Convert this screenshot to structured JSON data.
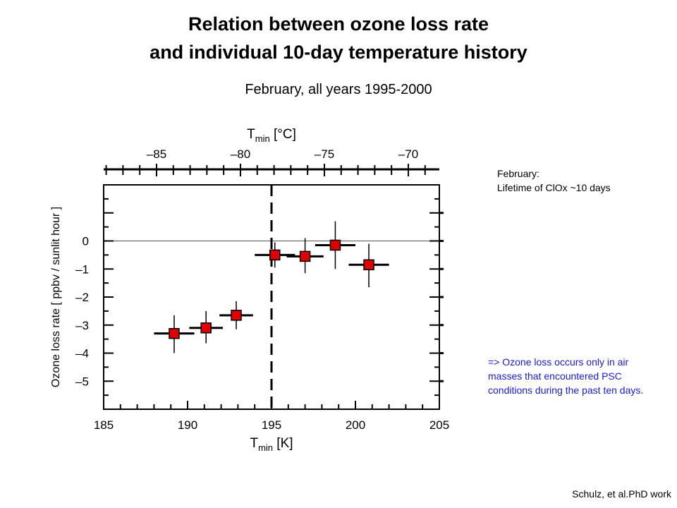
{
  "title": {
    "line1": "Relation between ozone loss rate",
    "line2": "and individual 10-day temperature history",
    "subtitle": "February, all years 1995-2000"
  },
  "annotations": {
    "top_note_line1": "February:",
    "top_note_line2": "Lifetime of ClOx ~10 days",
    "conclusion": "=> Ozone loss occurs only in air masses that encountered PSC conditions during the past ten days.",
    "credit": "Schulz, et al.PhD work"
  },
  "colors": {
    "marker_fill": "#e00000",
    "conclusion_text": "#1a1acc"
  },
  "chart_data": {
    "type": "scatter",
    "xlabel": "T",
    "xlabel_sub": "min",
    "xlabel_unit": " [K]",
    "ylabel": "Ozone loss rate [ ppbv / sunlit hour ]",
    "top_axis_label": "T",
    "top_axis_label_sub": "min",
    "top_axis_unit": " [°C]",
    "xlim": [
      185,
      205
    ],
    "ylim": [
      -6.0,
      2.0
    ],
    "xticks": [
      185,
      190,
      195,
      200,
      205
    ],
    "xtick_labels": [
      "185",
      "190",
      "195",
      "200",
      "205"
    ],
    "yticks": [
      0,
      -1,
      -2,
      -3,
      -4,
      -5
    ],
    "ytick_labels": [
      "0",
      "–1",
      "–2",
      "–3",
      "–4",
      "–5"
    ],
    "top_ticks_c": [
      -85,
      -80,
      -75,
      -70
    ],
    "top_tick_labels": [
      "–85",
      "–80",
      "–75",
      "–70"
    ],
    "zero_line": 0,
    "threshold_x": 195,
    "points": [
      {
        "x": 189.2,
        "y": -3.3,
        "xerr": 1.2,
        "yerr": [
          0.7,
          0.65
        ]
      },
      {
        "x": 191.1,
        "y": -3.1,
        "xerr": 1.0,
        "yerr": [
          0.55,
          0.6
        ]
      },
      {
        "x": 192.9,
        "y": -2.65,
        "xerr": 1.0,
        "yerr": [
          0.5,
          0.5
        ]
      },
      {
        "x": 195.2,
        "y": -0.5,
        "xerr": 1.2,
        "yerr": [
          0.45,
          0.45
        ]
      },
      {
        "x": 197.0,
        "y": -0.55,
        "xerr": 1.1,
        "yerr": [
          0.6,
          0.65
        ]
      },
      {
        "x": 198.8,
        "y": -0.15,
        "xerr": 1.2,
        "yerr": [
          0.85,
          0.85
        ]
      },
      {
        "x": 200.8,
        "y": -0.85,
        "xerr": 1.2,
        "yerr": [
          0.8,
          0.75
        ]
      }
    ]
  }
}
